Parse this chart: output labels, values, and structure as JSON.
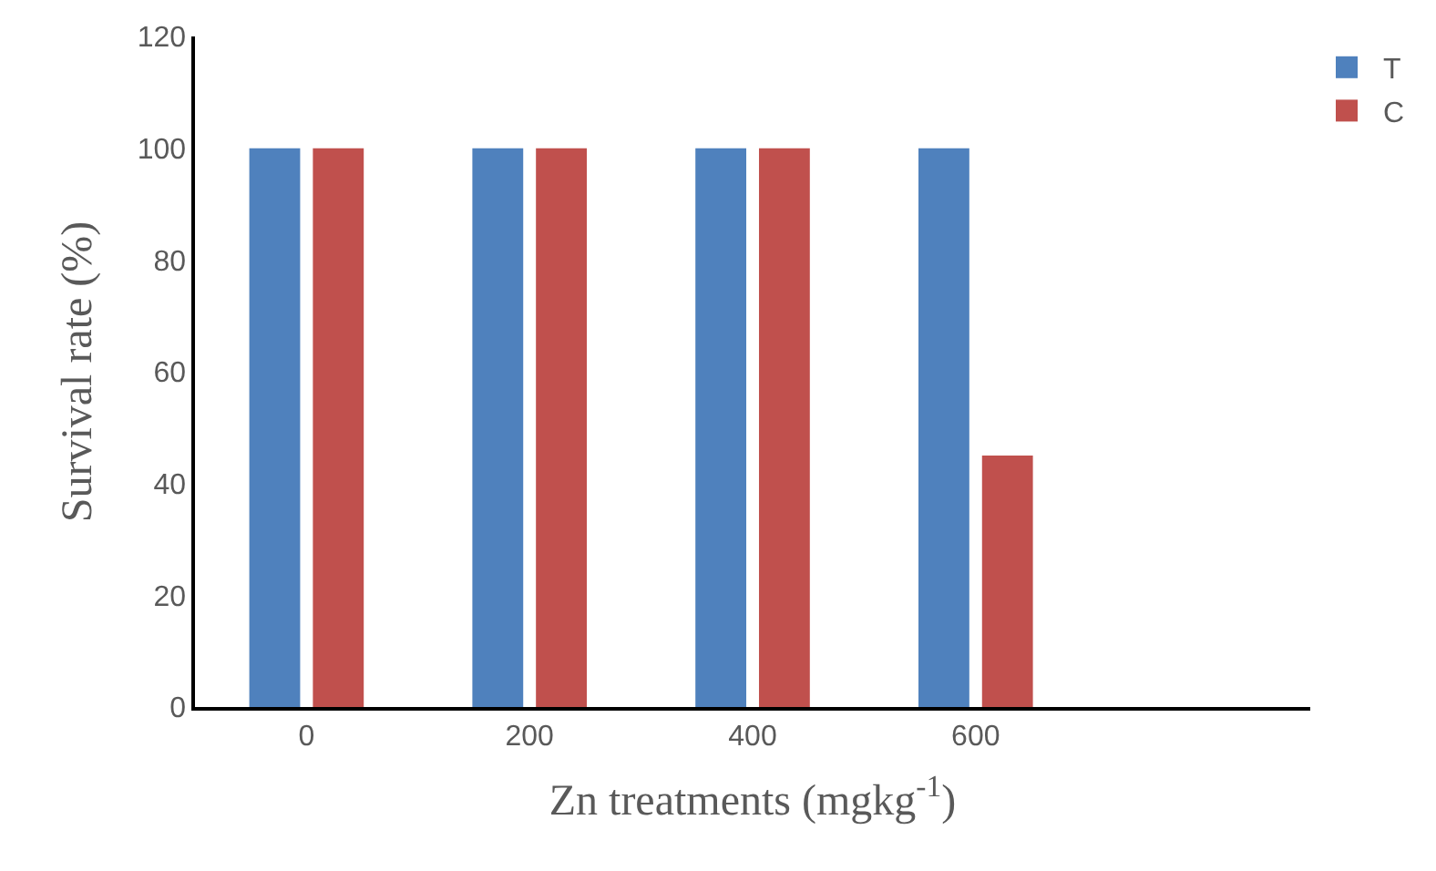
{
  "chart_data": {
    "type": "bar",
    "xlabel": "Zn treatments (mgkg$^{-1}$)",
    "ylabel": "Survival rate (%)",
    "categories": [
      "0",
      "200",
      "400",
      "600",
      null
    ],
    "series": [
      {
        "name": "T",
        "color": "#4f81bd",
        "values": [
          100,
          100,
          100,
          100,
          null
        ]
      },
      {
        "name": "C",
        "color": "#c0504d",
        "values": [
          100,
          100,
          100,
          45,
          null
        ]
      }
    ],
    "ylim": [
      0,
      120
    ],
    "yticks": [
      0,
      20,
      40,
      60,
      80,
      100,
      120
    ],
    "grid": false,
    "legend": "top right"
  }
}
